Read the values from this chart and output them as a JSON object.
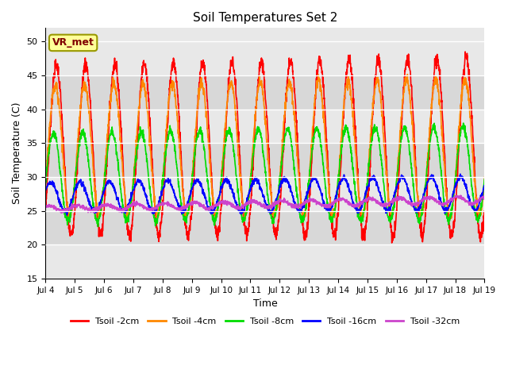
{
  "title": "Soil Temperatures Set 2",
  "xlabel": "Time",
  "ylabel": "Soil Temperature (C)",
  "ylim": [
    15,
    52
  ],
  "yticks": [
    15,
    20,
    25,
    30,
    35,
    40,
    45,
    50
  ],
  "bg_color": "#e0e0e0",
  "band_colors": [
    "#d8d8d8",
    "#e8e8e8"
  ],
  "annotation_text": "VR_met",
  "annotation_bg": "#ffff99",
  "annotation_border": "#999900",
  "series": {
    "Tsoil -2cm": {
      "color": "#ff0000",
      "lw": 1.2
    },
    "Tsoil -4cm": {
      "color": "#ff8800",
      "lw": 1.2
    },
    "Tsoil -8cm": {
      "color": "#00dd00",
      "lw": 1.2
    },
    "Tsoil -16cm": {
      "color": "#0000ff",
      "lw": 1.2
    },
    "Tsoil -32cm": {
      "color": "#cc44cc",
      "lw": 1.2
    }
  },
  "xtick_labels": [
    "Jul 4",
    "Jul 5",
    "Jul 6",
    "Jul 7",
    "Jul 8",
    "Jul 9",
    "Jul 10",
    "Jul 11",
    "Jul 12",
    "Jul 13",
    "Jul 14",
    "Jul 15",
    "Jul 16",
    "Jul 17",
    "Jul 18",
    "Jul 19"
  ],
  "n_days": 15,
  "pts_per_day": 144
}
